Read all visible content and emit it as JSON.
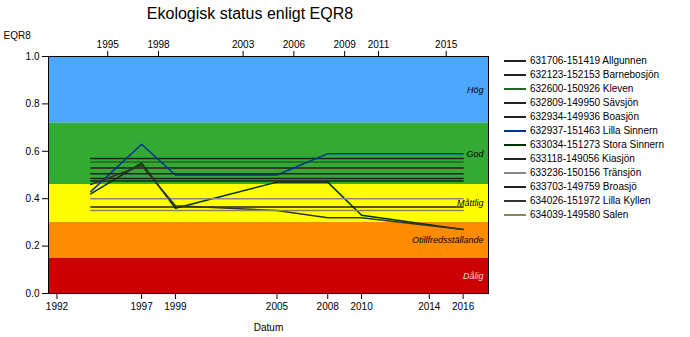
{
  "chart_data": {
    "type": "line",
    "title": "Ekologisk status enligt EQR8",
    "xlabel": "Datum",
    "ylabel": "EQR8",
    "xlim": [
      1991.5,
      2017.5
    ],
    "xticks": [
      1992,
      1997,
      1999,
      2005,
      2008,
      2010,
      2014,
      2016
    ],
    "x2lim": [
      1991.5,
      2017.5
    ],
    "x2ticks": [
      1995,
      1998,
      2003,
      2006,
      2009,
      2011,
      2015
    ],
    "ylim": [
      0.0,
      1.0
    ],
    "yticks": [
      {
        "value": 0.0,
        "label": "0.0"
      },
      0.2,
      0.4,
      0.6,
      0.8,
      {
        "value": 1.0,
        "label": "1.0"
      }
    ],
    "legend": "right",
    "zones": [
      {
        "ymin": 0.0,
        "ymax": 0.15,
        "color": "#cc0000",
        "label": "Dålig",
        "label_color": "#dddddd"
      },
      {
        "ymin": 0.15,
        "ymax": 0.3,
        "color": "#ff8c00",
        "label": "Otillfredsställande",
        "label_color": "#000000"
      },
      {
        "ymin": 0.3,
        "ymax": 0.46,
        "color": "#ffff00",
        "label": "Måttlig",
        "label_color": "#000000"
      },
      {
        "ymin": 0.46,
        "ymax": 0.72,
        "color": "#33aa33",
        "label": "God",
        "label_color": "#000000"
      },
      {
        "ymin": 0.72,
        "ymax": 1.0,
        "color": "#4da6ff",
        "label": "Hög",
        "label_color": "#000000"
      }
    ],
    "series": [
      {
        "name": "631706-151419 Allgunnen",
        "color": "#222222",
        "x": [
          1994,
          2016
        ],
        "values": [
          0.57,
          0.57
        ]
      },
      {
        "name": "632123-152153 Barnebosjön",
        "color": "#222222",
        "x": [
          1994,
          2016
        ],
        "values": [
          0.53,
          0.53
        ]
      },
      {
        "name": "632600-150926 Kleven",
        "color": "#226622",
        "x": [
          1994,
          2016
        ],
        "values": [
          0.555,
          0.555
        ]
      },
      {
        "name": "632809-149950 Sävsjön",
        "color": "#222222",
        "x": [
          1994,
          2016
        ],
        "values": [
          0.475,
          0.475
        ]
      },
      {
        "name": "632934-149936 Boasjön",
        "color": "#222222",
        "x": [
          1994,
          2016
        ],
        "values": [
          0.485,
          0.485
        ]
      },
      {
        "name": "632937-151463 Lilla Sinnern",
        "color": "#003399",
        "x": [
          1994,
          1997,
          1999,
          2005,
          2008,
          2016
        ],
        "values": [
          0.43,
          0.63,
          0.5,
          0.5,
          0.59,
          0.59
        ]
      },
      {
        "name": "633034-151273 Stora Sinnern",
        "color": "#003300",
        "x": [
          1994,
          1997,
          1999,
          2005,
          2008,
          2010,
          2016
        ],
        "values": [
          0.42,
          0.55,
          0.36,
          0.47,
          0.47,
          0.33,
          0.27
        ]
      },
      {
        "name": "633118-149056 Kiasjön",
        "color": "#222222",
        "x": [
          1994,
          2016
        ],
        "values": [
          0.505,
          0.505
        ]
      },
      {
        "name": "633236-150156 Tränsjön",
        "color": "#888888",
        "x": [
          1994,
          2016
        ],
        "values": [
          0.4,
          0.4
        ]
      },
      {
        "name": "633703-149759 Broasjö",
        "color": "#222222",
        "x": [
          1994,
          2016
        ],
        "values": [
          0.365,
          0.365
        ]
      },
      {
        "name": "634026-151972 Lilla Kyllen",
        "color": "#333333",
        "x": [
          1994,
          1997,
          1999,
          2005,
          2008,
          2010,
          2016
        ],
        "values": [
          0.46,
          0.54,
          0.37,
          0.35,
          0.32,
          0.32,
          0.27
        ]
      },
      {
        "name": "634039-149580 Salen",
        "color": "#888855",
        "x": [
          1994,
          2016
        ],
        "values": [
          0.35,
          0.35
        ]
      }
    ]
  }
}
